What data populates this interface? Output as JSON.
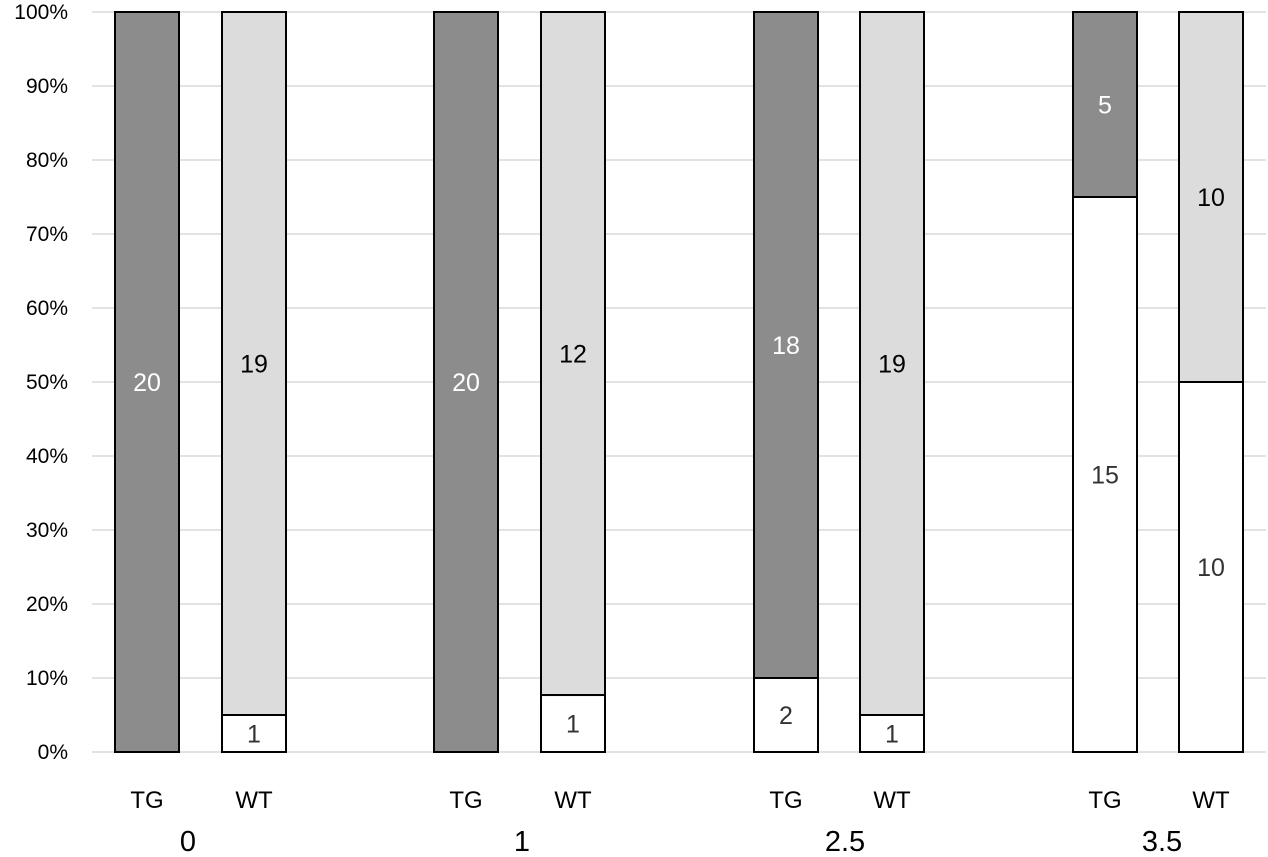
{
  "chart_data": {
    "type": "bar",
    "stacked": "percent",
    "ylim": [
      0,
      100
    ],
    "yticks": [
      "0%",
      "10%",
      "20%",
      "30%",
      "40%",
      "50%",
      "60%",
      "70%",
      "80%",
      "90%",
      "100%"
    ],
    "grid": "horizontal",
    "groups": [
      {
        "label": "0",
        "bars": [
          {
            "label": "TG",
            "segments": [
              {
                "count": 20,
                "percent": 100,
                "color": "#8c8c8c",
                "label_color": "#ffffff"
              }
            ]
          },
          {
            "label": "WT",
            "segments": [
              {
                "count": 1,
                "percent": 5,
                "color": "#ffffff",
                "label_color": "#333333"
              },
              {
                "count": 19,
                "percent": 95,
                "color": "#dcdcdc",
                "label_color": "#000000"
              }
            ]
          }
        ]
      },
      {
        "label": "1",
        "bars": [
          {
            "label": "TG",
            "segments": [
              {
                "count": 20,
                "percent": 100,
                "color": "#8c8c8c",
                "label_color": "#ffffff"
              }
            ]
          },
          {
            "label": "WT",
            "segments": [
              {
                "count": 1,
                "percent": 7.7,
                "color": "#ffffff",
                "label_color": "#333333"
              },
              {
                "count": 12,
                "percent": 92.3,
                "color": "#dcdcdc",
                "label_color": "#000000"
              }
            ]
          }
        ]
      },
      {
        "label": "2.5",
        "bars": [
          {
            "label": "TG",
            "segments": [
              {
                "count": 2,
                "percent": 10,
                "color": "#ffffff",
                "label_color": "#333333"
              },
              {
                "count": 18,
                "percent": 90,
                "color": "#8c8c8c",
                "label_color": "#ffffff"
              }
            ]
          },
          {
            "label": "WT",
            "segments": [
              {
                "count": 1,
                "percent": 5,
                "color": "#ffffff",
                "label_color": "#333333"
              },
              {
                "count": 19,
                "percent": 95,
                "color": "#dcdcdc",
                "label_color": "#000000"
              }
            ]
          }
        ]
      },
      {
        "label": "3.5",
        "bars": [
          {
            "label": "TG",
            "segments": [
              {
                "count": 15,
                "percent": 75,
                "color": "#ffffff",
                "label_color": "#333333"
              },
              {
                "count": 5,
                "percent": 25,
                "color": "#8c8c8c",
                "label_color": "#ffffff"
              }
            ]
          },
          {
            "label": "WT",
            "segments": [
              {
                "count": 10,
                "percent": 50,
                "color": "#ffffff",
                "label_color": "#333333"
              },
              {
                "count": 10,
                "percent": 50,
                "color": "#dcdcdc",
                "label_color": "#000000"
              }
            ]
          }
        ]
      }
    ]
  }
}
